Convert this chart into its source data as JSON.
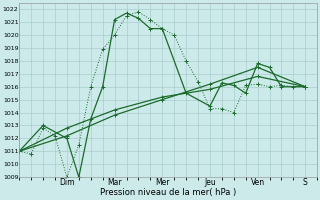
{
  "title": "",
  "xlabel": "Pression niveau de la mer( hPa )",
  "ylim": [
    1009,
    1022.5
  ],
  "yticks": [
    1009,
    1010,
    1011,
    1012,
    1013,
    1014,
    1015,
    1016,
    1017,
    1018,
    1019,
    1020,
    1021,
    1022
  ],
  "bg_color": "#cceaea",
  "grid_color": "#aacccc",
  "line_color": "#1a6b2a",
  "x_day_labels": [
    "Dim",
    "Mar",
    "Mer",
    "Jeu",
    "Ven",
    "S"
  ],
  "x_day_positions": [
    2,
    4,
    6,
    8,
    10,
    12
  ],
  "xlim": [
    0,
    12.5
  ],
  "series": [
    {
      "x": [
        0,
        0.5,
        1.0,
        1.5,
        2.0,
        2.5,
        3.0,
        3.5,
        4.0,
        4.5,
        5.0,
        5.5,
        6.0,
        6.5,
        7.0,
        7.5,
        8.0,
        8.5,
        9.0,
        9.5,
        10.0,
        10.5,
        11.0,
        11.5,
        12.0
      ],
      "y": [
        1011,
        1010.8,
        1012.8,
        1012.2,
        1009,
        1011.5,
        1016,
        1018.9,
        1020,
        1021.5,
        1021.8,
        1021.2,
        1020.5,
        1020,
        1018,
        1016.4,
        1014.3,
        1014.3,
        1014.0,
        1016.1,
        1016.2,
        1016.0,
        1016.1,
        1016.0,
        1016.0
      ],
      "dotted": true,
      "lw": 0.7
    },
    {
      "x": [
        0,
        1,
        2,
        2.5,
        3,
        3.5,
        4,
        4.5,
        5,
        5.5,
        6,
        7,
        8,
        8.5,
        9,
        9.5,
        10,
        10.5,
        11,
        12
      ],
      "y": [
        1011,
        1013,
        1012,
        1009,
        1013.5,
        1016.0,
        1021.2,
        1021.7,
        1021.3,
        1020.5,
        1020.5,
        1015.5,
        1014.5,
        1016.3,
        1016.1,
        1015.5,
        1017.8,
        1017.5,
        1016.0,
        1016.0
      ],
      "dotted": false,
      "lw": 0.9
    },
    {
      "x": [
        0,
        2,
        4,
        6,
        8,
        10,
        12
      ],
      "y": [
        1011,
        1012.2,
        1013.8,
        1015.0,
        1016.2,
        1017.5,
        1016.0
      ],
      "dotted": false,
      "lw": 0.9
    },
    {
      "x": [
        0,
        2,
        4,
        6,
        8,
        10,
        12
      ],
      "y": [
        1011,
        1012.8,
        1014.2,
        1015.2,
        1015.8,
        1016.8,
        1016.0
      ],
      "dotted": false,
      "lw": 0.9
    }
  ]
}
